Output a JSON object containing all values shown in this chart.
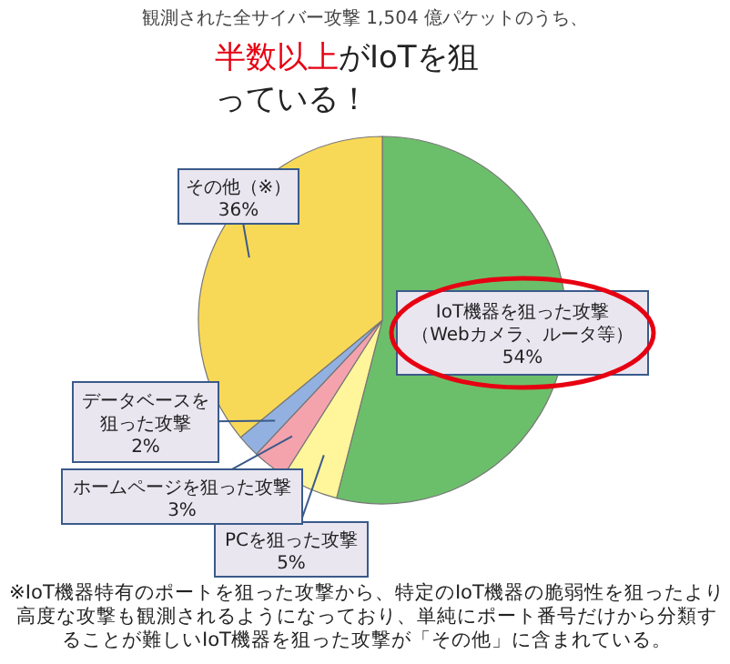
{
  "chart_data": {
    "type": "pie",
    "subtitle": "観測された全サイバー攻撃 1,504 億パケットのうち、",
    "title": "半数以上がIoTを狙っている！",
    "categories": [
      "IoT機器を狙った攻撃（Webカメラ、ルータ等）",
      "PCを狙った攻撃",
      "ホームページを狙った攻撃",
      "データベースを狙った攻撃",
      "その他（※）"
    ],
    "values": [
      54,
      5,
      3,
      2,
      36
    ],
    "value_labels": [
      "54%",
      "5%",
      "3%",
      "2%",
      "36%"
    ],
    "colors": [
      "#6cbf6a",
      "#fff59a",
      "#f4a3ad",
      "#92b1e0",
      "#f8d957"
    ],
    "annotations": [
      "※IoT機器特有のポートを狙った攻撃から、特定のIoT機器の脆弱性を狙ったより高度な攻撃も観測されるようになっており、単純にポート番号だけから分類することが難しいIoT機器を狙った攻撃が「その他」に含まれている。"
    ]
  }
}
